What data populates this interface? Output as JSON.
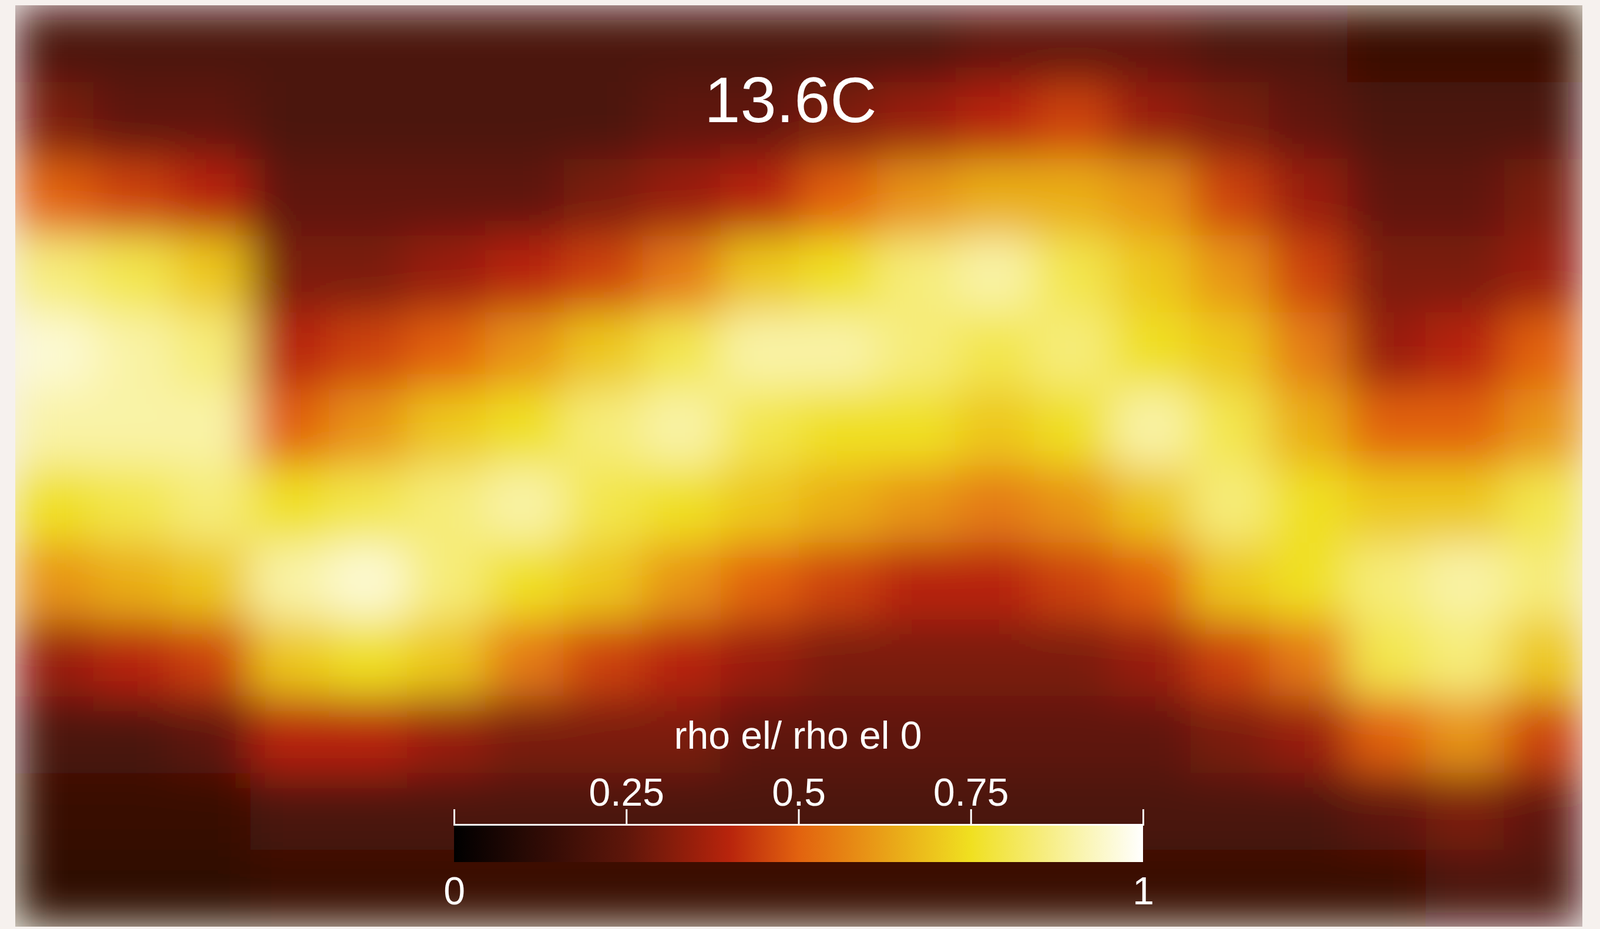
{
  "chart_data": {
    "type": "heatmap",
    "title": "13.6C",
    "tick_labels": false,
    "z": [
      [
        0.2,
        0.2,
        0.2,
        0.2,
        0.2,
        0.2,
        0.2,
        0.2,
        0.2,
        0.2,
        0.2,
        0.2,
        0.25,
        0.25,
        0.25,
        0.2,
        0.2,
        0.15,
        0.15,
        0.15
      ],
      [
        0.3,
        0.25,
        0.25,
        0.2,
        0.2,
        0.2,
        0.2,
        0.2,
        0.25,
        0.25,
        0.3,
        0.35,
        0.4,
        0.45,
        0.35,
        0.3,
        0.25,
        0.2,
        0.2,
        0.2
      ],
      [
        0.5,
        0.45,
        0.4,
        0.25,
        0.25,
        0.25,
        0.25,
        0.3,
        0.35,
        0.4,
        0.5,
        0.6,
        0.65,
        0.65,
        0.6,
        0.45,
        0.35,
        0.25,
        0.25,
        0.3
      ],
      [
        0.85,
        0.8,
        0.7,
        0.3,
        0.3,
        0.35,
        0.4,
        0.45,
        0.55,
        0.7,
        0.75,
        0.85,
        0.9,
        0.8,
        0.7,
        0.6,
        0.45,
        0.3,
        0.3,
        0.35
      ],
      [
        0.95,
        0.9,
        0.85,
        0.4,
        0.45,
        0.5,
        0.6,
        0.7,
        0.8,
        0.9,
        0.9,
        0.85,
        0.8,
        0.85,
        0.75,
        0.7,
        0.55,
        0.35,
        0.4,
        0.5
      ],
      [
        0.9,
        0.9,
        0.9,
        0.5,
        0.6,
        0.7,
        0.75,
        0.85,
        0.9,
        0.8,
        0.75,
        0.75,
        0.7,
        0.75,
        0.9,
        0.8,
        0.65,
        0.5,
        0.5,
        0.6
      ],
      [
        0.75,
        0.8,
        0.85,
        0.75,
        0.8,
        0.85,
        0.9,
        0.8,
        0.75,
        0.7,
        0.65,
        0.6,
        0.55,
        0.6,
        0.7,
        0.85,
        0.75,
        0.7,
        0.7,
        0.8
      ],
      [
        0.6,
        0.65,
        0.7,
        0.9,
        0.95,
        0.85,
        0.75,
        0.7,
        0.6,
        0.5,
        0.45,
        0.4,
        0.4,
        0.45,
        0.5,
        0.7,
        0.75,
        0.85,
        0.9,
        0.85
      ],
      [
        0.35,
        0.4,
        0.45,
        0.7,
        0.75,
        0.7,
        0.55,
        0.45,
        0.4,
        0.35,
        0.3,
        0.3,
        0.3,
        0.3,
        0.35,
        0.45,
        0.55,
        0.8,
        0.85,
        0.7
      ],
      [
        0.2,
        0.2,
        0.25,
        0.4,
        0.4,
        0.35,
        0.3,
        0.3,
        0.3,
        0.25,
        0.25,
        0.25,
        0.25,
        0.25,
        0.25,
        0.3,
        0.35,
        0.5,
        0.6,
        0.45
      ],
      [
        0.15,
        0.15,
        0.15,
        0.2,
        0.2,
        0.2,
        0.2,
        0.2,
        0.2,
        0.2,
        0.2,
        0.2,
        0.2,
        0.2,
        0.2,
        0.2,
        0.2,
        0.25,
        0.3,
        0.25
      ],
      [
        0.12,
        0.12,
        0.12,
        0.15,
        0.15,
        0.15,
        0.15,
        0.15,
        0.15,
        0.15,
        0.15,
        0.15,
        0.15,
        0.15,
        0.15,
        0.15,
        0.15,
        0.15,
        0.2,
        0.2
      ]
    ],
    "colorbar": {
      "title": "rho el/ rho el 0",
      "range": [
        0,
        1
      ],
      "ticks": [
        0,
        0.25,
        0.5,
        0.75,
        1
      ]
    }
  }
}
